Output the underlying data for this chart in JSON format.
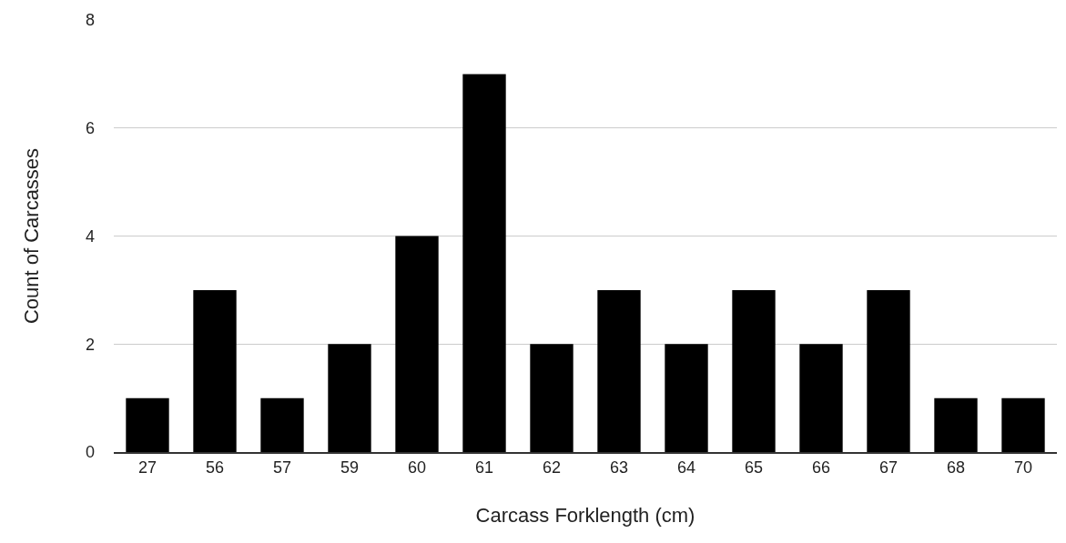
{
  "chart_data": {
    "type": "bar",
    "xlabel": "Carcass Forklength (cm)",
    "ylabel": "Count of Carcasses",
    "categories": [
      "27",
      "56",
      "57",
      "59",
      "60",
      "61",
      "62",
      "63",
      "64",
      "65",
      "66",
      "67",
      "68",
      "70"
    ],
    "values": [
      1,
      3,
      1,
      2,
      4,
      7,
      2,
      3,
      2,
      3,
      2,
      3,
      1,
      1
    ],
    "color": "#000000",
    "ylim": [
      0,
      8
    ],
    "yticks": [
      0,
      2,
      4,
      6,
      8
    ],
    "grid": "y"
  }
}
